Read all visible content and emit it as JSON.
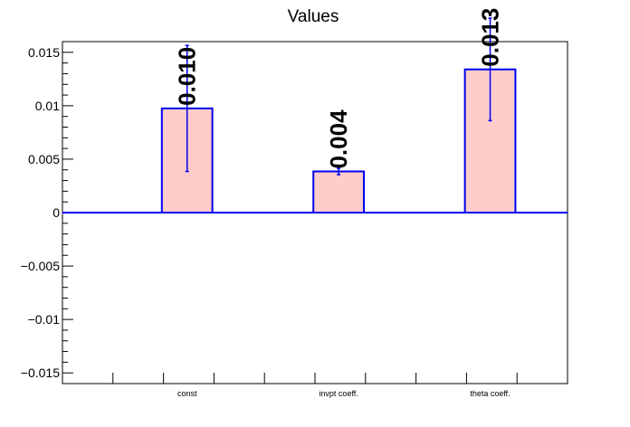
{
  "chart_data": {
    "type": "bar",
    "title": "Values",
    "categories": [
      "const",
      "invpt coeff.",
      "theta coeff."
    ],
    "values": [
      0.00975,
      0.00385,
      0.0134
    ],
    "errors": [
      0.0059,
      0.0003,
      0.0048
    ],
    "value_labels": [
      "0.010",
      "0.004",
      "0.013"
    ],
    "ylim": [
      -0.016,
      0.016
    ],
    "yticks": [
      -0.015,
      -0.01,
      -0.005,
      0,
      0.005,
      0.01,
      0.015
    ],
    "ytick_labels": [
      "−0.015",
      "−0.01",
      "−0.005",
      "0",
      "0.005",
      "0.01",
      "0.015"
    ],
    "xlabel": "",
    "ylabel": "",
    "grid": false,
    "colors": {
      "bar_fill": "#ffcccc",
      "bar_edge": "#0000ee",
      "axis": "#000000"
    }
  }
}
